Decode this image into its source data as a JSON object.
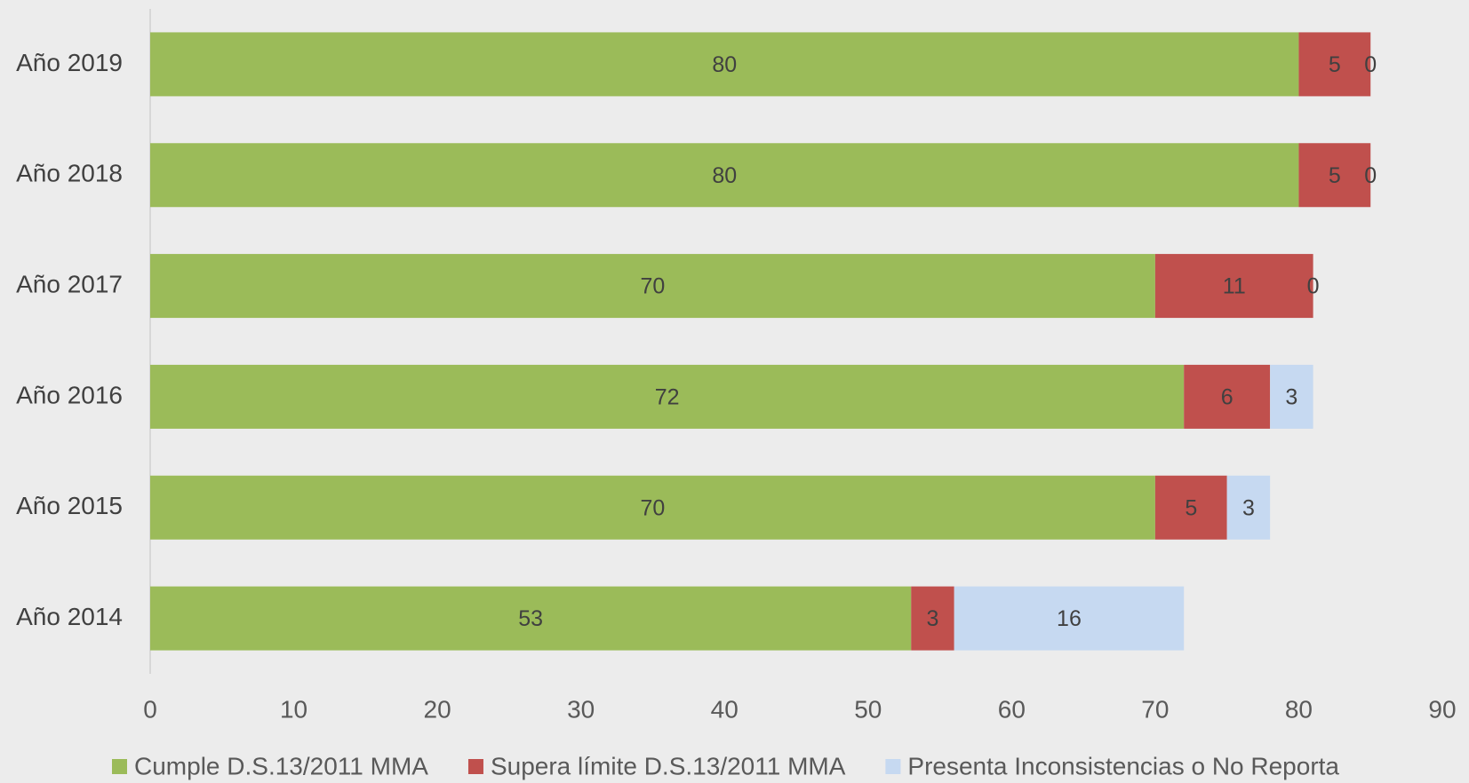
{
  "chart_data": {
    "type": "stacked_barh",
    "categories": [
      "Año 2019",
      "Año 2018",
      "Año 2017",
      "Año 2016",
      "Año 2015",
      "Año 2014"
    ],
    "series": [
      {
        "name": "Cumple D.S.13/2011 MMA",
        "color": "#9bbb59",
        "values": [
          80,
          80,
          70,
          72,
          70,
          53
        ]
      },
      {
        "name": "Supera límite D.S.13/2011 MMA",
        "color": "#c0504d",
        "values": [
          5,
          5,
          11,
          6,
          5,
          3
        ]
      },
      {
        "name": "Presenta Inconsistencias o No Reporta",
        "color": "#c6d9f1",
        "values": [
          0,
          0,
          0,
          3,
          3,
          16
        ]
      }
    ],
    "xlim": [
      0,
      90
    ],
    "xticks": [
      0,
      10,
      20,
      30,
      40,
      50,
      60,
      70,
      80,
      90
    ],
    "legend": "bottom",
    "grid": false
  }
}
